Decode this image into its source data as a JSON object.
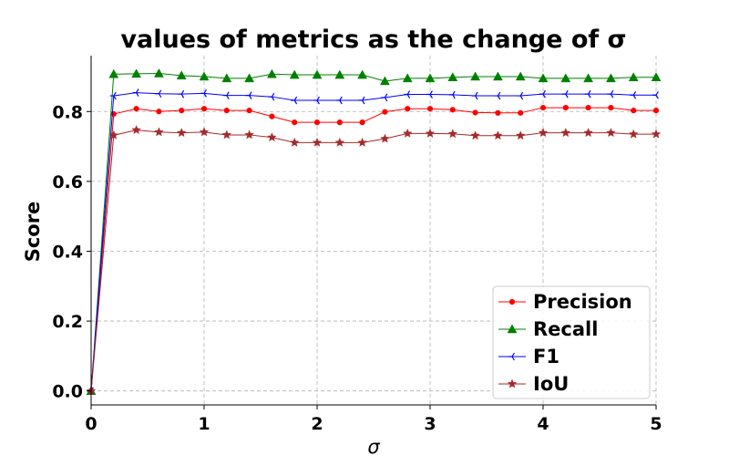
{
  "chart_data": {
    "type": "line",
    "title": "values of metrics as the change of σ",
    "xlabel": "σ",
    "ylabel": "Score",
    "xlim": [
      0,
      5
    ],
    "ylim": [
      -0.04,
      0.96
    ],
    "xticks": [
      0,
      1,
      2,
      3,
      4,
      5
    ],
    "xtick_labels": [
      "0",
      "1",
      "2",
      "3",
      "4",
      "5"
    ],
    "yticks": [
      0.0,
      0.2,
      0.4,
      0.6,
      0.8
    ],
    "ytick_labels": [
      "0.0",
      "0.2",
      "0.4",
      "0.6",
      "0.8"
    ],
    "grid": true,
    "legend_position": "lower-right",
    "x": [
      0,
      0.2,
      0.4,
      0.6,
      0.8,
      1.0,
      1.2,
      1.4,
      1.6,
      1.8,
      2.0,
      2.2,
      2.4,
      2.6,
      2.8,
      3.0,
      3.2,
      3.4,
      3.6,
      3.8,
      4.0,
      4.2,
      4.4,
      4.6,
      4.8,
      5.0
    ],
    "series": [
      {
        "name": "Precision",
        "color": "#ff0000",
        "marker": "circle",
        "values": [
          0.0,
          0.793,
          0.808,
          0.8,
          0.803,
          0.808,
          0.803,
          0.803,
          0.786,
          0.769,
          0.769,
          0.769,
          0.769,
          0.799,
          0.808,
          0.808,
          0.805,
          0.797,
          0.796,
          0.796,
          0.811,
          0.811,
          0.811,
          0.811,
          0.803,
          0.803
        ]
      },
      {
        "name": "Recall",
        "color": "#008000",
        "marker": "triangle",
        "values": [
          0.0,
          0.907,
          0.908,
          0.909,
          0.903,
          0.9,
          0.895,
          0.895,
          0.907,
          0.905,
          0.905,
          0.905,
          0.905,
          0.887,
          0.895,
          0.895,
          0.898,
          0.9,
          0.9,
          0.9,
          0.895,
          0.895,
          0.895,
          0.895,
          0.898,
          0.898
        ]
      },
      {
        "name": "F1",
        "color": "#0000ff",
        "marker": "tri_left",
        "values": [
          0.0,
          0.845,
          0.854,
          0.851,
          0.85,
          0.852,
          0.846,
          0.846,
          0.842,
          0.832,
          0.832,
          0.832,
          0.832,
          0.84,
          0.849,
          0.849,
          0.848,
          0.845,
          0.845,
          0.845,
          0.85,
          0.85,
          0.85,
          0.85,
          0.847,
          0.847
        ]
      },
      {
        "name": "IoU",
        "color": "#a52a2a",
        "marker": "star",
        "values": [
          0.0,
          0.732,
          0.747,
          0.741,
          0.739,
          0.741,
          0.733,
          0.733,
          0.726,
          0.711,
          0.711,
          0.711,
          0.711,
          0.722,
          0.737,
          0.737,
          0.736,
          0.731,
          0.731,
          0.731,
          0.739,
          0.739,
          0.739,
          0.739,
          0.735,
          0.735
        ]
      }
    ]
  }
}
